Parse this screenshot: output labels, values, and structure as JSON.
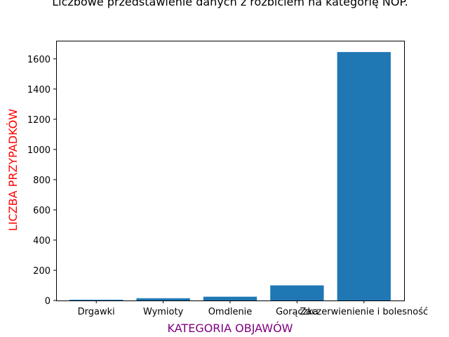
{
  "chart_data": {
    "type": "bar",
    "title": "Liczbowe przedstawienie danych z rozbiciem na kategorię NOP.",
    "xlabel": "KATEGORIA OBJAWÓW",
    "ylabel": "LICZBA PRZYPADKÓW",
    "categories": [
      "Drgawki",
      "Wymioty",
      "Omdlenie",
      "Gorączka",
      "Zaczerwienienie i bolesność"
    ],
    "values": [
      5,
      15,
      25,
      100,
      1645
    ],
    "ylim": [
      0,
      1720
    ],
    "yticks": [
      "0",
      "200",
      "400",
      "600",
      "800",
      "1000",
      "1200",
      "1400",
      "1600"
    ],
    "grid": false,
    "bar_color": "#1f77b4",
    "xlabel_color": "#800080",
    "ylabel_color": "#ff0000"
  }
}
